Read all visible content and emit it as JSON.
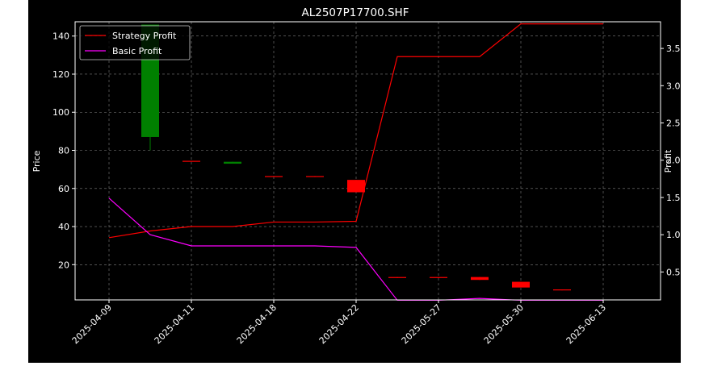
{
  "chart_data": {
    "type": "candlestick-line",
    "title": "AL2507P17700.SHF",
    "xlabel": "",
    "ylabel_left": "Price",
    "ylabel_right": "Profit",
    "x_tick_labels": [
      "2025-04-09",
      "2025-04-11",
      "2025-04-18",
      "2025-04-22",
      "2025-05-27",
      "2025-05-30",
      "2025-06-13"
    ],
    "y_left_ticks": [
      20,
      40,
      60,
      80,
      100,
      120,
      140
    ],
    "y_left_lim": [
      1.5,
      147.5
    ],
    "y_right_ticks": [
      0.5,
      1.0,
      1.5,
      2.0,
      2.5,
      3.0,
      3.5
    ],
    "y_right_lim": [
      0.125,
      3.858
    ],
    "grid": true,
    "legend_position": "top-left",
    "colors": {
      "up": "#008000",
      "down": "#ff0000",
      "strategy": "#ff0000",
      "basic": "#ff00ff",
      "background": "#000000",
      "foreground": "#ffffff",
      "grid": "#808080"
    },
    "candles": [
      {
        "i": 1,
        "open": 87,
        "close": 146,
        "high": 146,
        "low": 80
      },
      {
        "i": 2,
        "open": 74.5,
        "close": 74,
        "high": 74.5,
        "low": 74
      },
      {
        "i": 3,
        "open": 73,
        "close": 74,
        "high": 74,
        "low": 73
      },
      {
        "i": 4,
        "open": 66.5,
        "close": 66,
        "high": 66.5,
        "low": 66
      },
      {
        "i": 5,
        "open": 66.5,
        "close": 66,
        "high": 66.5,
        "low": 66
      },
      {
        "i": 6,
        "open": 64.5,
        "close": 58,
        "high": 64.5,
        "low": 58
      },
      {
        "i": 7,
        "open": 13.5,
        "close": 13,
        "high": 13.5,
        "low": 13
      },
      {
        "i": 8,
        "open": 13.5,
        "close": 13,
        "high": 13.5,
        "low": 13
      },
      {
        "i": 9,
        "open": 13.5,
        "close": 12,
        "high": 13.5,
        "low": 12
      },
      {
        "i": 10,
        "open": 11,
        "close": 8,
        "high": 11,
        "low": 8
      },
      {
        "i": 11,
        "open": 7,
        "close": 6.5,
        "high": 7,
        "low": 6.5
      }
    ],
    "series": [
      {
        "name": "Strategy Profit",
        "axis": "right",
        "x": [
          0,
          1,
          2,
          3,
          4,
          5,
          6,
          7,
          8,
          9,
          10,
          11,
          12
        ],
        "values": [
          0.96,
          1.05,
          1.11,
          1.11,
          1.17,
          1.17,
          1.18,
          3.39,
          3.39,
          3.39,
          3.83,
          3.83,
          3.83
        ]
      },
      {
        "name": "Basic Profit",
        "axis": "right",
        "x": [
          0,
          1,
          2,
          3,
          4,
          5,
          6,
          7,
          8,
          9,
          10,
          11,
          12
        ],
        "values": [
          1.49,
          1.0,
          0.85,
          0.85,
          0.85,
          0.85,
          0.83,
          0.12,
          0.12,
          0.145,
          0.12,
          0.12,
          0.12
        ]
      }
    ]
  }
}
